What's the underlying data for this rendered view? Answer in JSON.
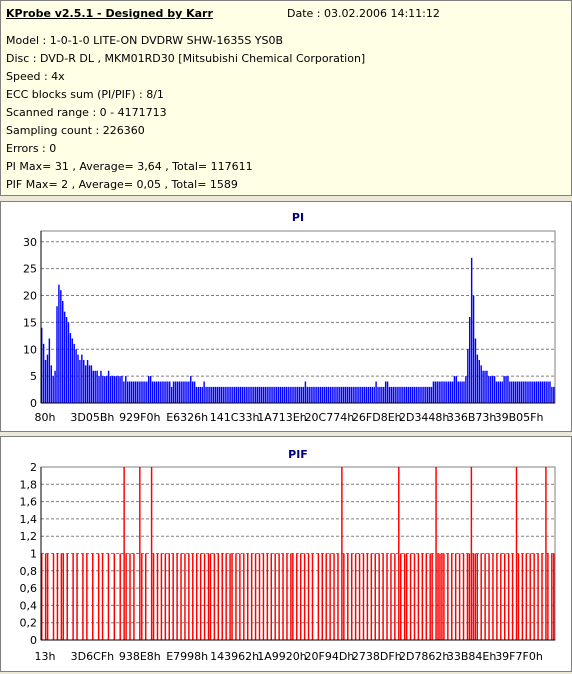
{
  "header": {
    "title": "KProbe v2.5.1 - Designed by Karr",
    "date": "Date : 03.02.2006 14:11:12",
    "lines": [
      "Model : 1-0-1-0 LITE-ON DVDRW SHW-1635S  YS0B",
      "Disc : DVD-R DL , MKM01RD30 [Mitsubishi Chemical Corporation]",
      "Speed : 4x",
      "ECC blocks sum (PI/PIF) : 8/1",
      "Scanned range : 0 - 4171713",
      "Sampling count : 226360",
      "Errors : 0",
      "PI Max= 31 , Average= 3,64 , Total= 117611",
      "PIF Max= 2 , Average= 0,05 , Total= 1589"
    ]
  },
  "chart_data": [
    {
      "type": "bar",
      "title": "PI",
      "color": "#0000ff",
      "ylim": [
        0,
        32
      ],
      "yticks": [
        "0",
        "5",
        "10",
        "15",
        "20",
        "25",
        "30"
      ],
      "ytick_values": [
        0,
        5,
        10,
        15,
        20,
        25,
        30
      ],
      "xticks": [
        "80h",
        "3D05Bh",
        "929F0h",
        "E6326h",
        "141C33h",
        "1A713Eh",
        "20C774h",
        "26FD8Eh",
        "2D3448h",
        "336B73h",
        "39B05Fh"
      ],
      "grid": true,
      "series": [
        {
          "values": [
            14,
            11,
            8,
            9,
            12,
            7,
            5,
            6,
            18,
            22,
            21,
            19,
            17,
            16,
            15,
            13,
            12,
            11,
            10,
            9,
            8,
            9,
            8,
            7,
            8,
            7,
            7,
            6,
            6,
            6,
            5,
            6,
            5,
            5,
            5,
            6,
            5,
            5,
            5,
            5,
            5,
            5,
            5,
            4,
            5,
            4,
            4,
            4,
            4,
            4,
            4,
            4,
            4,
            4,
            4,
            4,
            5,
            5,
            4,
            4,
            4,
            4,
            4,
            4,
            4,
            4,
            4,
            4,
            3,
            4,
            4,
            4,
            4,
            4,
            4,
            4,
            4,
            4,
            5,
            4,
            4,
            3,
            3,
            3,
            3,
            4,
            3,
            3,
            3,
            3,
            3,
            3,
            3,
            3,
            3,
            3,
            3,
            3,
            3,
            3,
            3,
            3,
            3,
            3,
            3,
            3,
            3,
            3,
            3,
            3,
            3,
            3,
            3,
            3,
            3,
            3,
            3,
            3,
            3,
            3,
            3,
            3,
            3,
            3,
            3,
            3,
            3,
            3,
            3,
            3,
            3,
            3,
            3,
            3,
            3,
            3,
            3,
            3,
            4,
            3,
            3,
            3,
            3,
            3,
            3,
            3,
            3,
            3,
            3,
            3,
            3,
            3,
            3,
            3,
            3,
            3,
            3,
            3,
            3,
            3,
            3,
            3,
            3,
            3,
            3,
            3,
            3,
            3,
            3,
            3,
            3,
            3,
            3,
            3,
            3,
            4,
            3,
            3,
            3,
            3,
            4,
            4,
            3,
            3,
            3,
            3,
            3,
            3,
            3,
            3,
            3,
            3,
            3,
            3,
            3,
            3,
            3,
            3,
            3,
            3,
            3,
            3,
            3,
            3,
            3,
            4,
            4,
            4,
            4,
            4,
            4,
            4,
            4,
            4,
            4,
            4,
            5,
            5,
            4,
            4,
            4,
            4,
            5,
            10,
            16,
            27,
            20,
            12,
            9,
            8,
            7,
            6,
            6,
            6,
            5,
            5,
            5,
            5,
            4,
            4,
            4,
            4,
            5,
            5,
            5,
            4,
            4,
            4,
            4,
            4,
            4,
            4,
            4,
            4,
            4,
            4,
            4,
            4,
            4,
            4,
            4,
            4,
            4,
            4,
            4,
            4,
            4,
            3,
            3
          ]
        }
      ]
    },
    {
      "type": "bar",
      "title": "PIF",
      "color": "#ff0000",
      "ylim": [
        0,
        2
      ],
      "yticks": [
        "0",
        "0,2",
        "0,4",
        "0,6",
        "0,8",
        "1",
        "1,2",
        "1,4",
        "1,6",
        "1,8",
        "2"
      ],
      "ytick_values": [
        0,
        0.2,
        0.4,
        0.6,
        0.8,
        1,
        1.2,
        1.4,
        1.6,
        1.8,
        2
      ],
      "xticks": [
        "13h",
        "3D6CFh",
        "938E8h",
        "E7998h",
        "143962h",
        "1A9920h",
        "20F94Dh",
        "2738DFh",
        "2D7862h",
        "33B84Eh",
        "39F7F0h"
      ],
      "grid": true,
      "series": [
        {
          "values": [
            1,
            0,
            1,
            1,
            0,
            0,
            1,
            0,
            1,
            0,
            1,
            1,
            0,
            1,
            0,
            0,
            1,
            0,
            1,
            0,
            0,
            1,
            0,
            1,
            0,
            0,
            1,
            0,
            0,
            1,
            0,
            1,
            0,
            0,
            1,
            0,
            0,
            1,
            0,
            0,
            1,
            0,
            2,
            1,
            0,
            1,
            0,
            1,
            0,
            0,
            2,
            1,
            0,
            1,
            0,
            0,
            2,
            1,
            0,
            1,
            0,
            1,
            0,
            1,
            0,
            1,
            0,
            1,
            0,
            1,
            0,
            1,
            0,
            1,
            0,
            1,
            0,
            1,
            0,
            1,
            0,
            1,
            0,
            1,
            0,
            1,
            1,
            0,
            1,
            0,
            1,
            0,
            1,
            0,
            1,
            0,
            1,
            1,
            0,
            1,
            0,
            1,
            0,
            1,
            0,
            1,
            0,
            1,
            0,
            1,
            0,
            1,
            0,
            1,
            0,
            1,
            0,
            1,
            0,
            1,
            0,
            1,
            0,
            1,
            0,
            1,
            0,
            1,
            1,
            0,
            1,
            0,
            1,
            0,
            1,
            0,
            1,
            0,
            1,
            0,
            0,
            1,
            0,
            1,
            0,
            1,
            0,
            1,
            0,
            1,
            0,
            1,
            0,
            2,
            1,
            0,
            1,
            0,
            1,
            0,
            1,
            0,
            1,
            0,
            1,
            0,
            1,
            0,
            1,
            0,
            1,
            0,
            1,
            0,
            1,
            0,
            1,
            0,
            1,
            0,
            1,
            0,
            2,
            1,
            0,
            1,
            1,
            0,
            1,
            0,
            1,
            0,
            1,
            0,
            1,
            0,
            1,
            0,
            1,
            1,
            0,
            2,
            1,
            1,
            1,
            1,
            0,
            1,
            0,
            1,
            0,
            1,
            0,
            1,
            0,
            1,
            0,
            1,
            1,
            2,
            1,
            1,
            1,
            0,
            1,
            0,
            1,
            0,
            1,
            0,
            1,
            0,
            1,
            0,
            1,
            0,
            1,
            0,
            1,
            0,
            1,
            0,
            2,
            1,
            0,
            1,
            0,
            1,
            0,
            1,
            0,
            1,
            0,
            1,
            0,
            1,
            0,
            2,
            1,
            0,
            1,
            1
          ]
        }
      ]
    }
  ]
}
